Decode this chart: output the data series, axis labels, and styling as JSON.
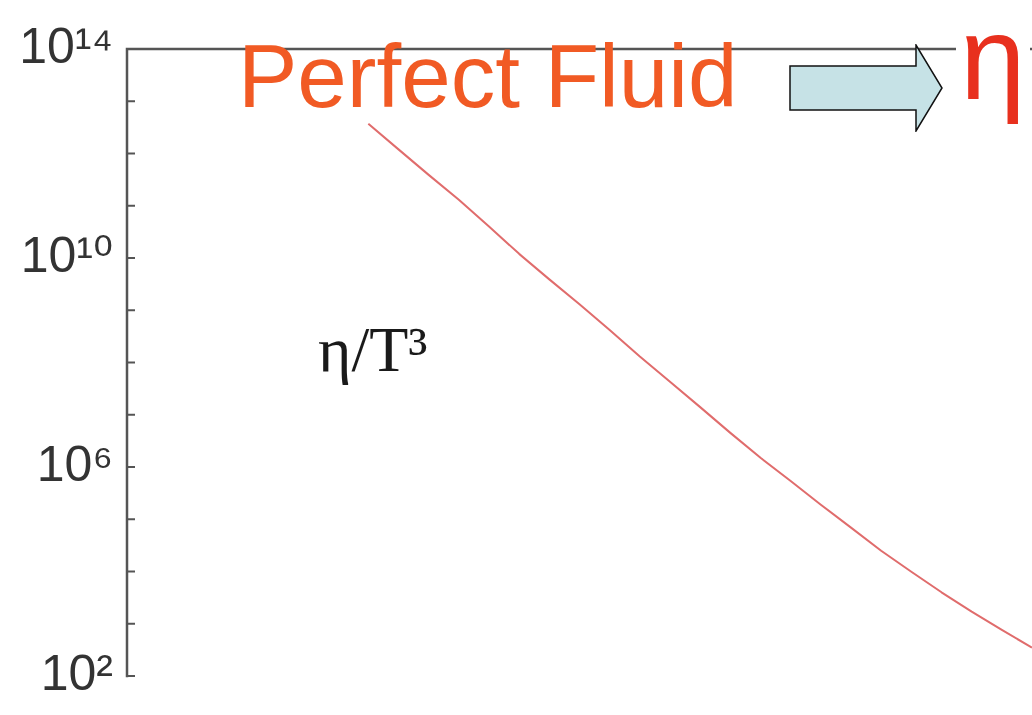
{
  "chart_data": {
    "type": "line",
    "ylabel": "η/T³",
    "annotations": [
      "Perfect Fluid",
      "η"
    ],
    "categories": [
      null,
      null,
      null,
      null,
      null,
      null,
      null,
      null,
      null,
      null,
      null,
      null,
      null,
      null,
      null,
      null,
      null,
      null,
      null,
      null,
      null,
      null,
      null,
      null,
      null,
      null,
      null,
      null,
      null,
      null,
      null
    ],
    "values": [
      null,
      null,
      null,
      null,
      null,
      null,
      null,
      null,
      3700000000000.0,
      1200000000000.0,
      390000000000.0,
      130000000000.0,
      40000000000.0,
      12000000000.0,
      3900000000.0,
      1300000000.0,
      420000000.0,
      130000000.0,
      43000000.0,
      14000000.0,
      4500000.0,
      1500000.0,
      540000.0,
      190000.0,
      69000.0,
      25000.0,
      9900.0,
      4000.0,
      1700.0,
      760.0,
      350.0
    ],
    "color": "#e06c6c",
    "log": true,
    "ylim": [
      100,
      100000000000000.0
    ],
    "yticks": [
      {
        "value": 100000000000000.0,
        "label": "10¹⁴"
      },
      {
        "value": 10000000000000.0,
        "label": null
      },
      {
        "value": 1000000000000.0,
        "label": null
      },
      {
        "value": 100000000000.0,
        "label": null
      },
      {
        "value": 10000000000.0,
        "label": "10¹⁰"
      },
      {
        "value": 1000000000.0,
        "label": null
      },
      {
        "value": 100000000.0,
        "label": null
      },
      {
        "value": 10000000.0,
        "label": null
      },
      {
        "value": 1000000.0,
        "label": "10⁶"
      },
      {
        "value": 100000.0,
        "label": null
      },
      {
        "value": 10000.0,
        "label": null
      },
      {
        "value": 1000.0,
        "label": null
      },
      {
        "value": 100,
        "label": "10²"
      }
    ],
    "tick_labels": "y",
    "marker": "none"
  }
}
